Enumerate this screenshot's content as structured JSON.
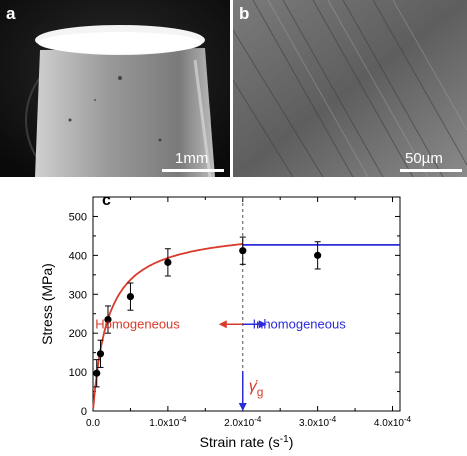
{
  "panel_a": {
    "letter": "a",
    "scale_label": "1mm"
  },
  "panel_b": {
    "letter": "b",
    "scale_label": "50µm"
  },
  "panel_c": {
    "letter": "c"
  },
  "chart_data": {
    "type": "scatter",
    "xlabel": "Strain rate (s",
    "xlabel_sup": "-1",
    "xlabel_end": ")",
    "ylabel": "Stress (MPa)",
    "xlim": [
      0,
      0.00041
    ],
    "ylim": [
      0,
      550
    ],
    "x_tick_labels": [
      {
        "v": 0,
        "base": "0.0",
        "exp": ""
      },
      {
        "v": 0.0001,
        "base": "1.0x10",
        "exp": "-4"
      },
      {
        "v": 0.0002,
        "base": "2.0x10",
        "exp": "-4"
      },
      {
        "v": 0.0003,
        "base": "3.0x10",
        "exp": "-4"
      },
      {
        "v": 0.0004,
        "base": "4.0x10",
        "exp": "-4"
      }
    ],
    "y_ticks": [
      0,
      100,
      200,
      300,
      400,
      500
    ],
    "points": [
      {
        "x": 5e-06,
        "y": 97,
        "err": 35
      },
      {
        "x": 1e-05,
        "y": 147,
        "err": 35
      },
      {
        "x": 2e-05,
        "y": 235,
        "err": 35
      },
      {
        "x": 5e-05,
        "y": 294,
        "err": 35
      },
      {
        "x": 0.0001,
        "y": 382,
        "err": 35
      },
      {
        "x": 0.0002,
        "y": 412,
        "err": 35
      },
      {
        "x": 0.0003,
        "y": 400,
        "err": 35
      }
    ],
    "fit_curve": {
      "color": "#d93a2b",
      "sigma_max": 472,
      "k": 2e-05,
      "x_end": 0.0002
    },
    "plateau": {
      "color": "#2b2bd9",
      "y": 427,
      "x_start": 0.0002,
      "x_end": 0.00041
    },
    "critical_rate": {
      "x": 0.0002,
      "label": "γ̇",
      "subscript": "g"
    },
    "annotations": {
      "homogeneous": {
        "text": "Homogeneous",
        "color": "#d93a2b"
      },
      "inhomogeneous": {
        "text": "Inhomogeneous",
        "color": "#2b2bd9"
      }
    },
    "grid": false
  }
}
